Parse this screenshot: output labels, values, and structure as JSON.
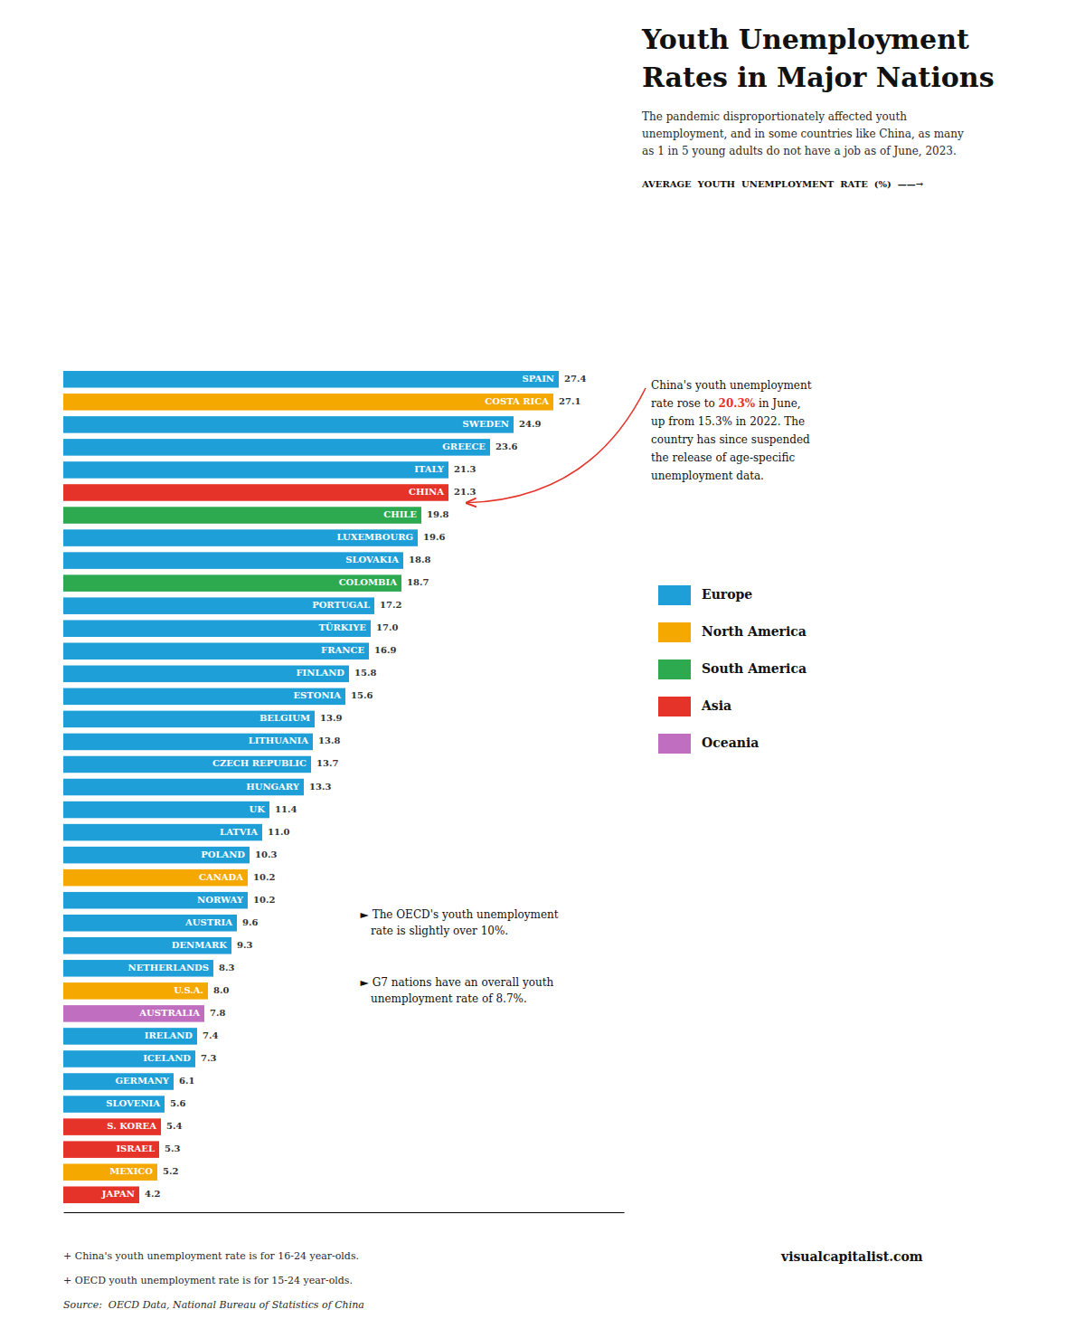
{
  "chart_data": {
    "type": "bar",
    "orientation": "horizontal",
    "title": "Youth Unemployment\nRates in Major Nations",
    "subtitle": "The pandemic disproportionately affected youth\nunemployment, and in some countries like China, as many\nas 1 in 5 young adults do not have a job as of June, 2023.",
    "xlabel": "AVERAGE  YOUTH  UNEMPLOYMENT  RATE  (%)  ——→",
    "categories": [
      "SPAIN",
      "COSTA RICA",
      "SWEDEN",
      "GREECE",
      "ITALY",
      "CHINA",
      "CHILE",
      "LUXEMBOURG",
      "SLOVAKIA",
      "COLOMBIA",
      "PORTUGAL",
      "TÜRKIYE",
      "FRANCE",
      "FINLAND",
      "ESTONIA",
      "BELGIUM",
      "LITHUANIA",
      "CZECH REPUBLIC",
      "HUNGARY",
      "UK",
      "LATVIA",
      "POLAND",
      "CANADA",
      "NORWAY",
      "AUSTRIA",
      "DENMARK",
      "NETHERLANDS",
      "U.S.A.",
      "AUSTRALIA",
      "IRELAND",
      "ICELAND",
      "GERMANY",
      "SLOVENIA",
      "S. KOREA",
      "ISRAEL",
      "MEXICO",
      "JAPAN"
    ],
    "values": [
      27.4,
      27.1,
      24.9,
      23.6,
      21.3,
      21.3,
      19.8,
      19.6,
      18.8,
      18.7,
      17.2,
      17.0,
      16.9,
      15.8,
      15.6,
      13.9,
      13.8,
      13.7,
      13.3,
      11.4,
      11.0,
      10.3,
      10.2,
      10.2,
      9.6,
      9.3,
      8.3,
      8.0,
      7.8,
      7.4,
      7.3,
      6.1,
      5.6,
      5.4,
      5.3,
      5.2,
      4.2
    ],
    "value_labels": [
      "27.4",
      "27.1",
      "24.9",
      "23.6",
      "21.3",
      "21.3",
      "19.8",
      "19.6",
      "18.8",
      "18.7",
      "17.2",
      "17.0",
      "16.9",
      "15.8",
      "15.6",
      "13.9",
      "13.8",
      "13.7",
      "13.3",
      "11.4",
      "11.0",
      "10.3",
      "10.2",
      "10.2",
      "9.6",
      "9.3",
      "8.3",
      "8.0",
      "7.8",
      "7.4",
      "7.3",
      "6.1",
      "5.6",
      "5.4",
      "5.3",
      "5.2",
      "4.2"
    ],
    "colors": [
      "#1E9FD8",
      "#F5A800",
      "#1E9FD8",
      "#1E9FD8",
      "#1E9FD8",
      "#E63329",
      "#2DAA4F",
      "#1E9FD8",
      "#1E9FD8",
      "#2DAA4F",
      "#1E9FD8",
      "#1E9FD8",
      "#1E9FD8",
      "#1E9FD8",
      "#1E9FD8",
      "#1E9FD8",
      "#1E9FD8",
      "#1E9FD8",
      "#1E9FD8",
      "#1E9FD8",
      "#1E9FD8",
      "#1E9FD8",
      "#F5A800",
      "#1E9FD8",
      "#1E9FD8",
      "#1E9FD8",
      "#1E9FD8",
      "#F5A800",
      "#C06FC0",
      "#1E9FD8",
      "#1E9FD8",
      "#1E9FD8",
      "#1E9FD8",
      "#E63329",
      "#E63329",
      "#F5A800",
      "#E63329"
    ],
    "xlim": [
      0,
      31
    ],
    "tick_labels": false,
    "grid": false,
    "data_labels": true,
    "legend_items": [
      {
        "label": "Europe",
        "color": "#1E9FD8"
      },
      {
        "label": "North America",
        "color": "#F5A800"
      },
      {
        "label": "South America",
        "color": "#2DAA4F"
      },
      {
        "label": "Asia",
        "color": "#E63329"
      },
      {
        "label": "Oceania",
        "color": "#C06FC0"
      }
    ],
    "annotations": [
      {
        "text": "China's youth unemployment\nrate rose to 20.3% in June,\nup from 15.3% in 2022. The\ncountry has since suspended\nthe release of age-specific\nunemployment data.",
        "highlight": {
          "text": "20.3%",
          "color": "#E63329"
        },
        "arrow_to": "CHINA"
      },
      {
        "text": "► The OECD's youth unemployment\n   rate is slightly over 10%.",
        "category": "AUSTRIA"
      },
      {
        "text": "► G7 nations have an overall youth\n   unemployment rate of 8.7%.",
        "category": "U.S.A."
      }
    ],
    "notes": [
      "+ China's youth unemployment rate is for 16-24 year-olds.",
      "+ OECD youth unemployment rate is for 15-24 year-olds.",
      "Source:  OECD Data, National Bureau of Statistics of China"
    ],
    "source": "visualcapitalist.com"
  }
}
